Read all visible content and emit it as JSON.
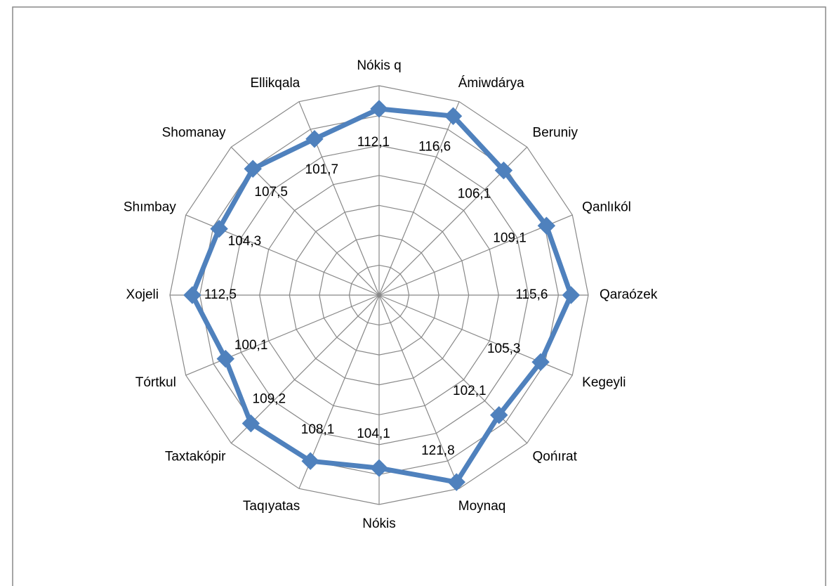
{
  "chart_data": {
    "type": "radar",
    "categories": [
      "Nókis q",
      "Ámiwdárya",
      "Beruniy",
      "Qanlıkól",
      "Qaraózek",
      "Kegeyli",
      "Qońırat",
      "Moynaq",
      "Nókis",
      "Taqıyatas",
      "Taxtakópir",
      "Tórtkul",
      "Xojeli",
      "Shımbay",
      "Shomanay",
      "Ellikqala"
    ],
    "values": [
      112.1,
      116.6,
      106.1,
      109.1,
      115.6,
      105.3,
      102.1,
      121.8,
      104.1,
      108.1,
      109.2,
      100.1,
      112.5,
      104.3,
      107.5,
      101.7
    ],
    "value_labels": [
      "112,1",
      "116,6",
      "106,1",
      "109,1",
      "115,6",
      "105,3",
      "102,1",
      "121,8",
      "104,1",
      "108,1",
      "109,2",
      "100,1",
      "112,5",
      "104,3",
      "107,5",
      "101,7"
    ],
    "color": "#4f81bd",
    "ylim": [
      0,
      126
    ],
    "yticks": [
      0,
      18,
      36,
      54,
      72,
      90,
      108,
      126
    ],
    "grid": true
  }
}
